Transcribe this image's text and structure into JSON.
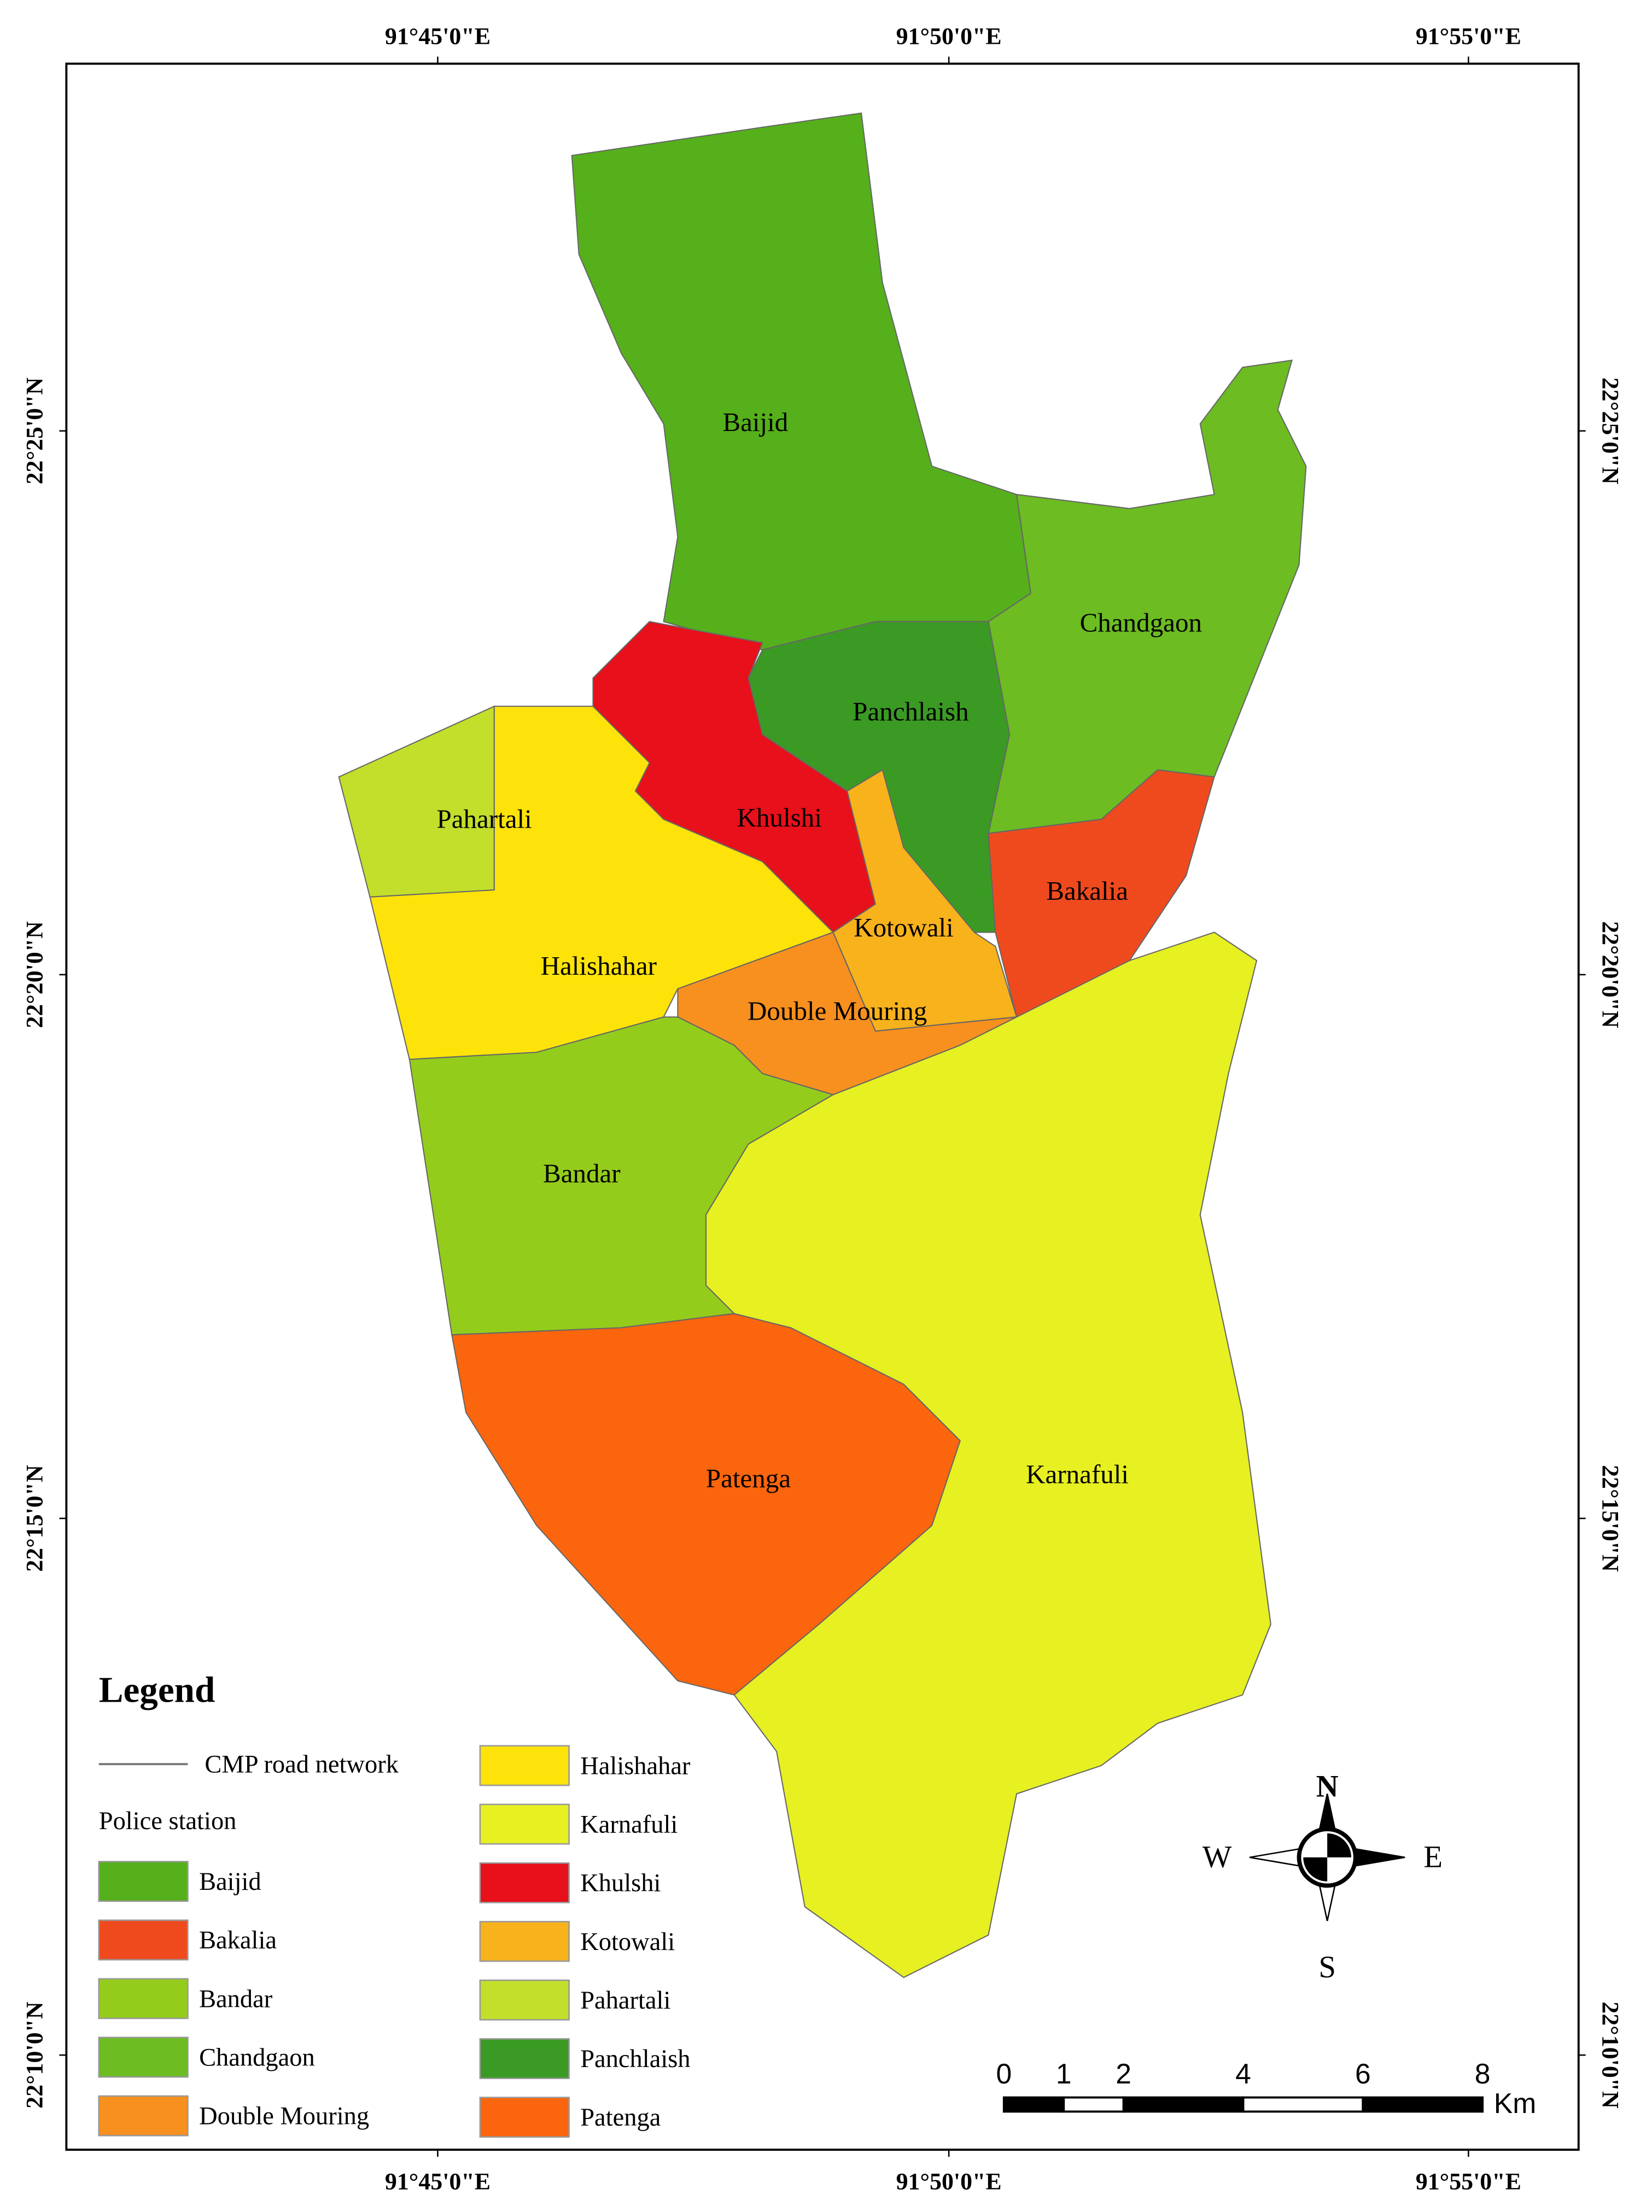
{
  "map": {
    "graticule": {
      "top": [
        "91°45'0\"E",
        "91°50'0\"E",
        "91°55'0\"E"
      ],
      "bottom": [
        "91°45'0\"E",
        "91°50'0\"E",
        "91°55'0\"E"
      ],
      "left": [
        "22°25'0\"N",
        "22°20'0\"N",
        "22°15'0\"N",
        "22°10'0\"N"
      ],
      "right": [
        "22°25'0\"N",
        "22°20'0\"N",
        "22°15'0\"N",
        "22°10'0\"N"
      ]
    },
    "regions": [
      {
        "label": "Baijid"
      },
      {
        "label": "Chandgaon"
      },
      {
        "label": "Panchlaish"
      },
      {
        "label": "Khulshi"
      },
      {
        "label": "Bakalia"
      },
      {
        "label": "Kotowali"
      },
      {
        "label": "Double Mouring"
      },
      {
        "label": "Halishahar"
      },
      {
        "label": "Pahartali"
      },
      {
        "label": "Bandar"
      },
      {
        "label": "Patenga"
      },
      {
        "label": "Karnafuli"
      }
    ],
    "legend": {
      "title": "Legend",
      "road": "CMP road network",
      "group": "Police station",
      "items": [
        {
          "label": "Baijid",
          "color": "#55b01b"
        },
        {
          "label": "Bakalia",
          "color": "#ef4a1e"
        },
        {
          "label": "Bandar",
          "color": "#94cc1c"
        },
        {
          "label": "Chandgaon",
          "color": "#6cbc22"
        },
        {
          "label": "Double Mouring",
          "color": "#f7901e"
        },
        {
          "label": "Halishahar",
          "color": "#fde30a"
        },
        {
          "label": "Karnafuli",
          "color": "#e7f021"
        },
        {
          "label": "Khulshi",
          "color": "#e8101a"
        },
        {
          "label": "Kotowali",
          "color": "#f8b21c"
        },
        {
          "label": "Pahartali",
          "color": "#c3df2b"
        },
        {
          "label": "Panchlaish",
          "color": "#3b9a24"
        },
        {
          "label": "Patenga",
          "color": "#fb650d"
        }
      ]
    },
    "compass": {
      "n": "N",
      "s": "S",
      "w": "W",
      "e": "E"
    },
    "scale": {
      "ticks": [
        0,
        1,
        2,
        4,
        6,
        8
      ],
      "unit": "Km"
    }
  }
}
